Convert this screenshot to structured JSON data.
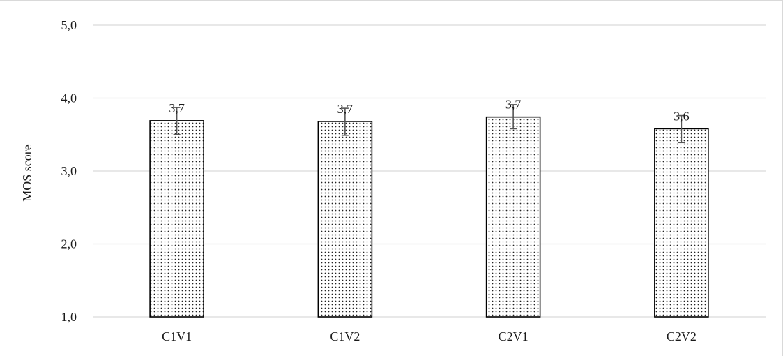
{
  "chart_data": {
    "type": "bar",
    "title": "",
    "xlabel": "",
    "ylabel": "MOS score",
    "ylim": [
      1.0,
      5.0
    ],
    "yticks": [
      "1,0",
      "2,0",
      "3,0",
      "4,0",
      "5,0"
    ],
    "ytick_values": [
      1.0,
      2.0,
      3.0,
      4.0,
      5.0
    ],
    "categories": [
      "C1V1",
      "C1V2",
      "C2V1",
      "C2V2"
    ],
    "values": [
      3.69,
      3.68,
      3.74,
      3.58
    ],
    "data_labels": [
      "3,7",
      "3,7",
      "3,7",
      "3,6"
    ],
    "error_low": [
      3.5,
      3.49,
      3.58,
      3.39
    ],
    "error_high": [
      3.87,
      3.86,
      3.91,
      3.76
    ],
    "grid": true,
    "legend": "none",
    "colors": {
      "bar_fill": "#ffffff",
      "bar_dots": "#222222",
      "bar_stroke": "#000000",
      "grid": "#d9d9d9",
      "error_bar": "#555555"
    }
  }
}
